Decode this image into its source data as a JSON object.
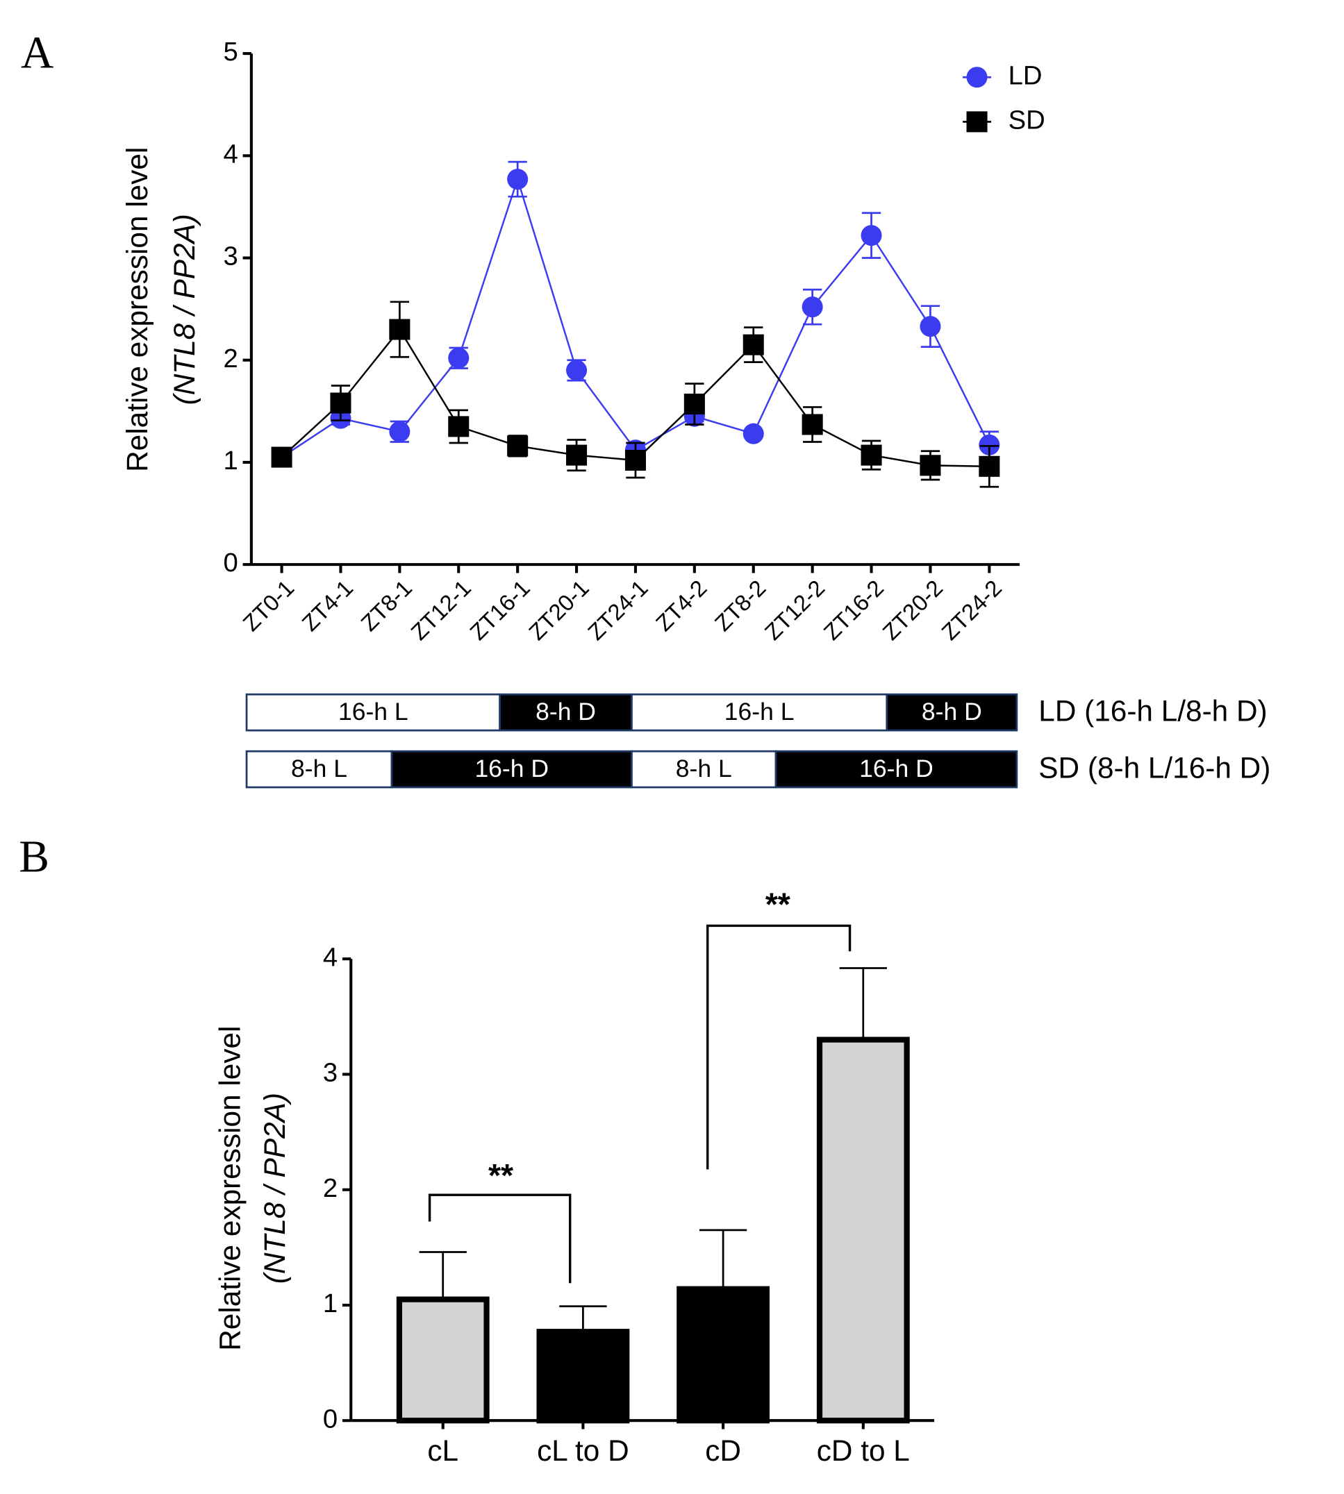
{
  "chart_data": [
    {
      "type": "line",
      "panel_label": "A",
      "categories": [
        "ZT0-1",
        "ZT4-1",
        "ZT8-1",
        "ZT12-1",
        "ZT16-1",
        "ZT20-1",
        "ZT24-1",
        "ZT4-2",
        "ZT8-2",
        "ZT12-2",
        "ZT16-2",
        "ZT20-2",
        "ZT24-2"
      ],
      "ylabel": [
        "Relative expression level",
        "(NTL8 / PP2A)"
      ],
      "ylim": [
        0,
        5
      ],
      "yticks": [
        0,
        1,
        2,
        3,
        4,
        5
      ],
      "series": [
        {
          "name": "LD",
          "color": "#3b3bf0",
          "marker": "circle",
          "values": [
            1.05,
            1.43,
            1.3,
            2.02,
            3.77,
            1.9,
            1.12,
            1.45,
            1.28,
            2.52,
            3.22,
            2.33,
            1.17
          ],
          "errors": [
            0.05,
            0.06,
            0.1,
            0.1,
            0.17,
            0.1,
            0.07,
            0.05,
            0.03,
            0.17,
            0.22,
            0.2,
            0.13
          ]
        },
        {
          "name": "SD",
          "color": "#000000",
          "marker": "square",
          "values": [
            1.05,
            1.58,
            2.3,
            1.35,
            1.16,
            1.07,
            1.02,
            1.57,
            2.15,
            1.37,
            1.07,
            0.97,
            0.96
          ],
          "errors": [
            0.07,
            0.17,
            0.27,
            0.16,
            0.1,
            0.15,
            0.17,
            0.2,
            0.17,
            0.17,
            0.14,
            0.14,
            0.2
          ]
        }
      ],
      "photoperiods": [
        {
          "label": "LD (16-h L/8-h D)",
          "segments": [
            {
              "text": "16-h L",
              "color": "#ffffff"
            },
            {
              "text": "8-h D",
              "color": "#000000"
            },
            {
              "text": "16-h L",
              "color": "#ffffff"
            },
            {
              "text": "8-h D",
              "color": "#000000"
            }
          ]
        },
        {
          "label": "SD (8-h L/16-h D)",
          "segments": [
            {
              "text": "8-h L",
              "color": "#ffffff"
            },
            {
              "text": "16-h D",
              "color": "#000000"
            },
            {
              "text": "8-h L",
              "color": "#ffffff"
            },
            {
              "text": "16-h D",
              "color": "#000000"
            }
          ]
        }
      ]
    },
    {
      "type": "bar",
      "panel_label": "B",
      "categories": [
        "cL",
        "cL to D",
        "cD",
        "cD to L"
      ],
      "values": [
        1.05,
        0.77,
        1.14,
        3.3
      ],
      "errors": [
        0.41,
        0.22,
        0.51,
        0.62
      ],
      "colors": [
        "#d3d3d3",
        "#000000",
        "#000000",
        "#d3d3d3"
      ],
      "ylabel": [
        "Relative expression level",
        "(NTL8 / PP2A)"
      ],
      "ylim": [
        0,
        4
      ],
      "yticks": [
        0,
        1,
        2,
        3,
        4
      ],
      "annotations": [
        "**",
        "**"
      ]
    }
  ]
}
